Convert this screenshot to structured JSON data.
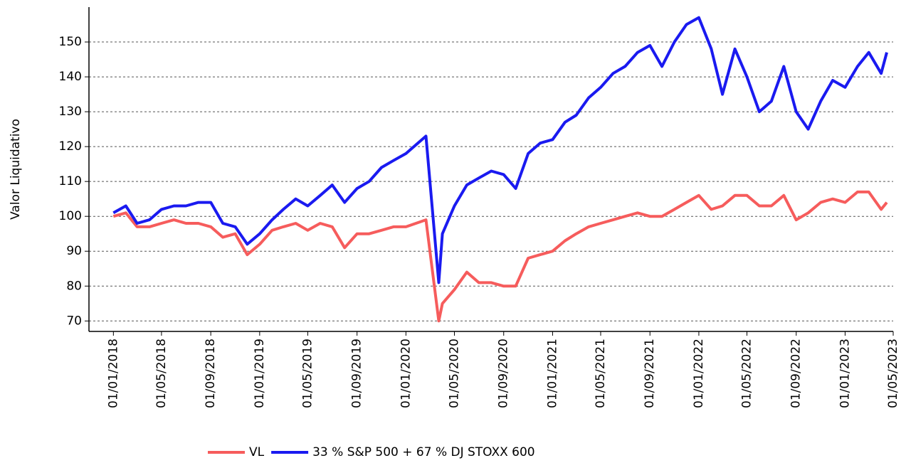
{
  "chart_data": {
    "type": "line",
    "y_label": "Valor Liquidativo",
    "x": [
      "01/01/2018",
      "01/02/2018",
      "01/03/2018",
      "01/04/2018",
      "01/05/2018",
      "01/06/2018",
      "01/07/2018",
      "01/08/2018",
      "01/09/2018",
      "01/10/2018",
      "01/11/2018",
      "01/12/2018",
      "01/01/2019",
      "01/02/2019",
      "01/03/2019",
      "01/04/2019",
      "01/05/2019",
      "01/06/2019",
      "01/07/2019",
      "01/08/2019",
      "01/09/2019",
      "01/10/2019",
      "01/11/2019",
      "01/12/2019",
      "01/01/2020",
      "20/02/2020",
      "23/03/2020",
      "01/04/2020",
      "01/05/2020",
      "01/06/2020",
      "01/07/2020",
      "01/08/2020",
      "01/09/2020",
      "01/10/2020",
      "01/11/2020",
      "01/12/2020",
      "01/01/2021",
      "01/02/2021",
      "01/03/2021",
      "01/04/2021",
      "01/05/2021",
      "01/06/2021",
      "01/07/2021",
      "01/08/2021",
      "01/09/2021",
      "01/10/2021",
      "01/11/2021",
      "01/12/2021",
      "01/01/2022",
      "01/02/2022",
      "01/03/2022",
      "01/04/2022",
      "01/05/2022",
      "01/06/2022",
      "01/07/2022",
      "01/08/2022",
      "01/09/2022",
      "01/10/2022",
      "01/11/2022",
      "01/12/2022",
      "01/01/2023",
      "01/02/2023",
      "01/03/2023",
      "01/04/2023",
      "15/04/2023"
    ],
    "series": [
      {
        "name": "VL",
        "color": "#f65c5c",
        "values": [
          100,
          101,
          97,
          97,
          98,
          99,
          98,
          98,
          97,
          94,
          95,
          89,
          92,
          96,
          97,
          98,
          96,
          98,
          97,
          91,
          95,
          95,
          96,
          97,
          97,
          99,
          70,
          75,
          79,
          84,
          81,
          81,
          80,
          80,
          88,
          89,
          90,
          93,
          95,
          97,
          98,
          99,
          100,
          101,
          100,
          100,
          102,
          104,
          106,
          102,
          103,
          106,
          106,
          103,
          103,
          106,
          99,
          101,
          104,
          105,
          104,
          107,
          107,
          102,
          104
        ]
      },
      {
        "name": "33 % S&P 500 + 67 % DJ STOXX 600",
        "color": "#1a1af0",
        "values": [
          101,
          103,
          98,
          99,
          102,
          103,
          103,
          104,
          104,
          98,
          97,
          92,
          95,
          99,
          102,
          105,
          103,
          106,
          109,
          104,
          108,
          110,
          114,
          116,
          118,
          123,
          81,
          95,
          103,
          109,
          111,
          113,
          112,
          108,
          118,
          121,
          122,
          127,
          129,
          134,
          137,
          141,
          143,
          147,
          149,
          143,
          150,
          155,
          157,
          148,
          135,
          148,
          140,
          130,
          133,
          143,
          130,
          125,
          133,
          139,
          137,
          143,
          147,
          141,
          147
        ]
      }
    ],
    "xlim": [
      "01/11/2017",
      "01/05/2023"
    ],
    "xticks": [
      "01/01/2018",
      "01/05/2018",
      "01/09/2018",
      "01/01/2019",
      "01/05/2019",
      "01/09/2019",
      "01/01/2020",
      "01/05/2020",
      "01/09/2020",
      "01/01/2021",
      "01/05/2021",
      "01/09/2021",
      "01/01/2022",
      "01/05/2022",
      "01/09/2022",
      "01/01/2023",
      "01/05/2023"
    ],
    "ylim": [
      67,
      160
    ],
    "yticks": [
      70,
      80,
      90,
      100,
      110,
      120,
      130,
      140,
      150
    ],
    "grid": true,
    "legend": "bottom"
  }
}
